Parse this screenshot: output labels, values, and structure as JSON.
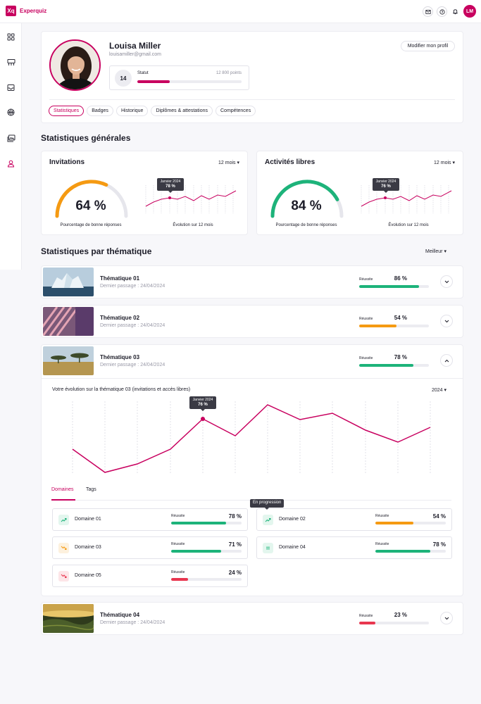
{
  "app": {
    "logo": "Xq",
    "name": "Experquiz"
  },
  "header": {
    "avatar_initials": "LM",
    "icons": [
      "mail-icon",
      "help-icon",
      "bell-icon"
    ]
  },
  "sidebar": {
    "icons": [
      "dashboard-icon",
      "training-icon",
      "inbox-icon",
      "basketball-icon",
      "gallery-icon",
      "user-icon"
    ]
  },
  "profile": {
    "name": "Louisa Miller",
    "email": "louisamiller@gmail.com",
    "edit_label": "Modifier mon profil",
    "level": "14",
    "status_label": "Statut",
    "points": "12 800 points",
    "progress": 0.31,
    "tabs": [
      "Statistiques",
      "Badges",
      "Historique",
      "Diplômes & attestations",
      "Compétences"
    ]
  },
  "general": {
    "title": "Statistiques générales",
    "cards": [
      {
        "title": "Invitations",
        "period": "12 mois",
        "percent": "64 %",
        "value": 64,
        "gauge_color": "#f59a12",
        "gauge_caption": "Pourcentage de bonne réponses",
        "evolution_caption": "Évolution sur 12 mois",
        "tooltip_month": "Janvier 2024",
        "tooltip_value": "78 %"
      },
      {
        "title": "Activités libres",
        "period": "12 mois",
        "percent": "84 %",
        "value": 84,
        "gauge_color": "#1db37a",
        "gauge_caption": "Pourcentage de bonne réponses",
        "evolution_caption": "Évolution sur 12 mois",
        "tooltip_month": "Janvier 2024",
        "tooltip_value": "76 %"
      }
    ]
  },
  "thematic": {
    "title": "Statistiques par thématique",
    "sort": "Meilleur",
    "items": [
      {
        "name": "Thématique 01",
        "date": "Dernier passage : 24/04/2024",
        "label": "Réussite",
        "pct": "86 %",
        "value": 0.86,
        "color": "#1db37a"
      },
      {
        "name": "Thématique 02",
        "date": "Dernier passage : 24/04/2024",
        "label": "Réussite",
        "pct": "54 %",
        "value": 0.54,
        "color": "#f59a12"
      },
      {
        "name": "Thématique 03",
        "date": "Dernier passage : 24/04/2024",
        "label": "Réussite",
        "pct": "78 %",
        "value": 0.78,
        "color": "#1db37a"
      },
      {
        "name": "Thématique 04",
        "date": "Dernier passage : 24/04/2024",
        "label": "Réussite",
        "pct": "23 %",
        "value": 0.23,
        "color": "#e8364f"
      }
    ],
    "expanded": {
      "title": "Votre évolution sur la thématique 03 (invitations et accès libres)",
      "year": "2024",
      "tooltip_month": "Janvier 2024",
      "tooltip_value": "76 %",
      "sub_tabs": [
        "Domaines",
        "Tags"
      ],
      "tooltip_domain": "En progression",
      "domains": [
        {
          "name": "Domaine 01",
          "label": "Réussite",
          "pct": "78 %",
          "value": 0.78,
          "color": "#1db37a",
          "trend": "up"
        },
        {
          "name": "Domaine 02",
          "label": "Réussite",
          "pct": "54 %",
          "value": 0.54,
          "color": "#f59a12",
          "trend": "up"
        },
        {
          "name": "Domaine 03",
          "label": "Réussite",
          "pct": "71 %",
          "value": 0.71,
          "color": "#1db37a",
          "trend": "down-orange"
        },
        {
          "name": "Domaine 04",
          "label": "Réussite",
          "pct": "78 %",
          "value": 0.78,
          "color": "#1db37a",
          "trend": "equal"
        },
        {
          "name": "Domaine 05",
          "label": "Réussite",
          "pct": "24 %",
          "value": 0.24,
          "color": "#e8364f",
          "trend": "down-red"
        }
      ]
    }
  },
  "colors": {
    "brand": "#c8005f",
    "green": "#1db37a",
    "orange": "#f59a12",
    "red": "#e8364f"
  }
}
